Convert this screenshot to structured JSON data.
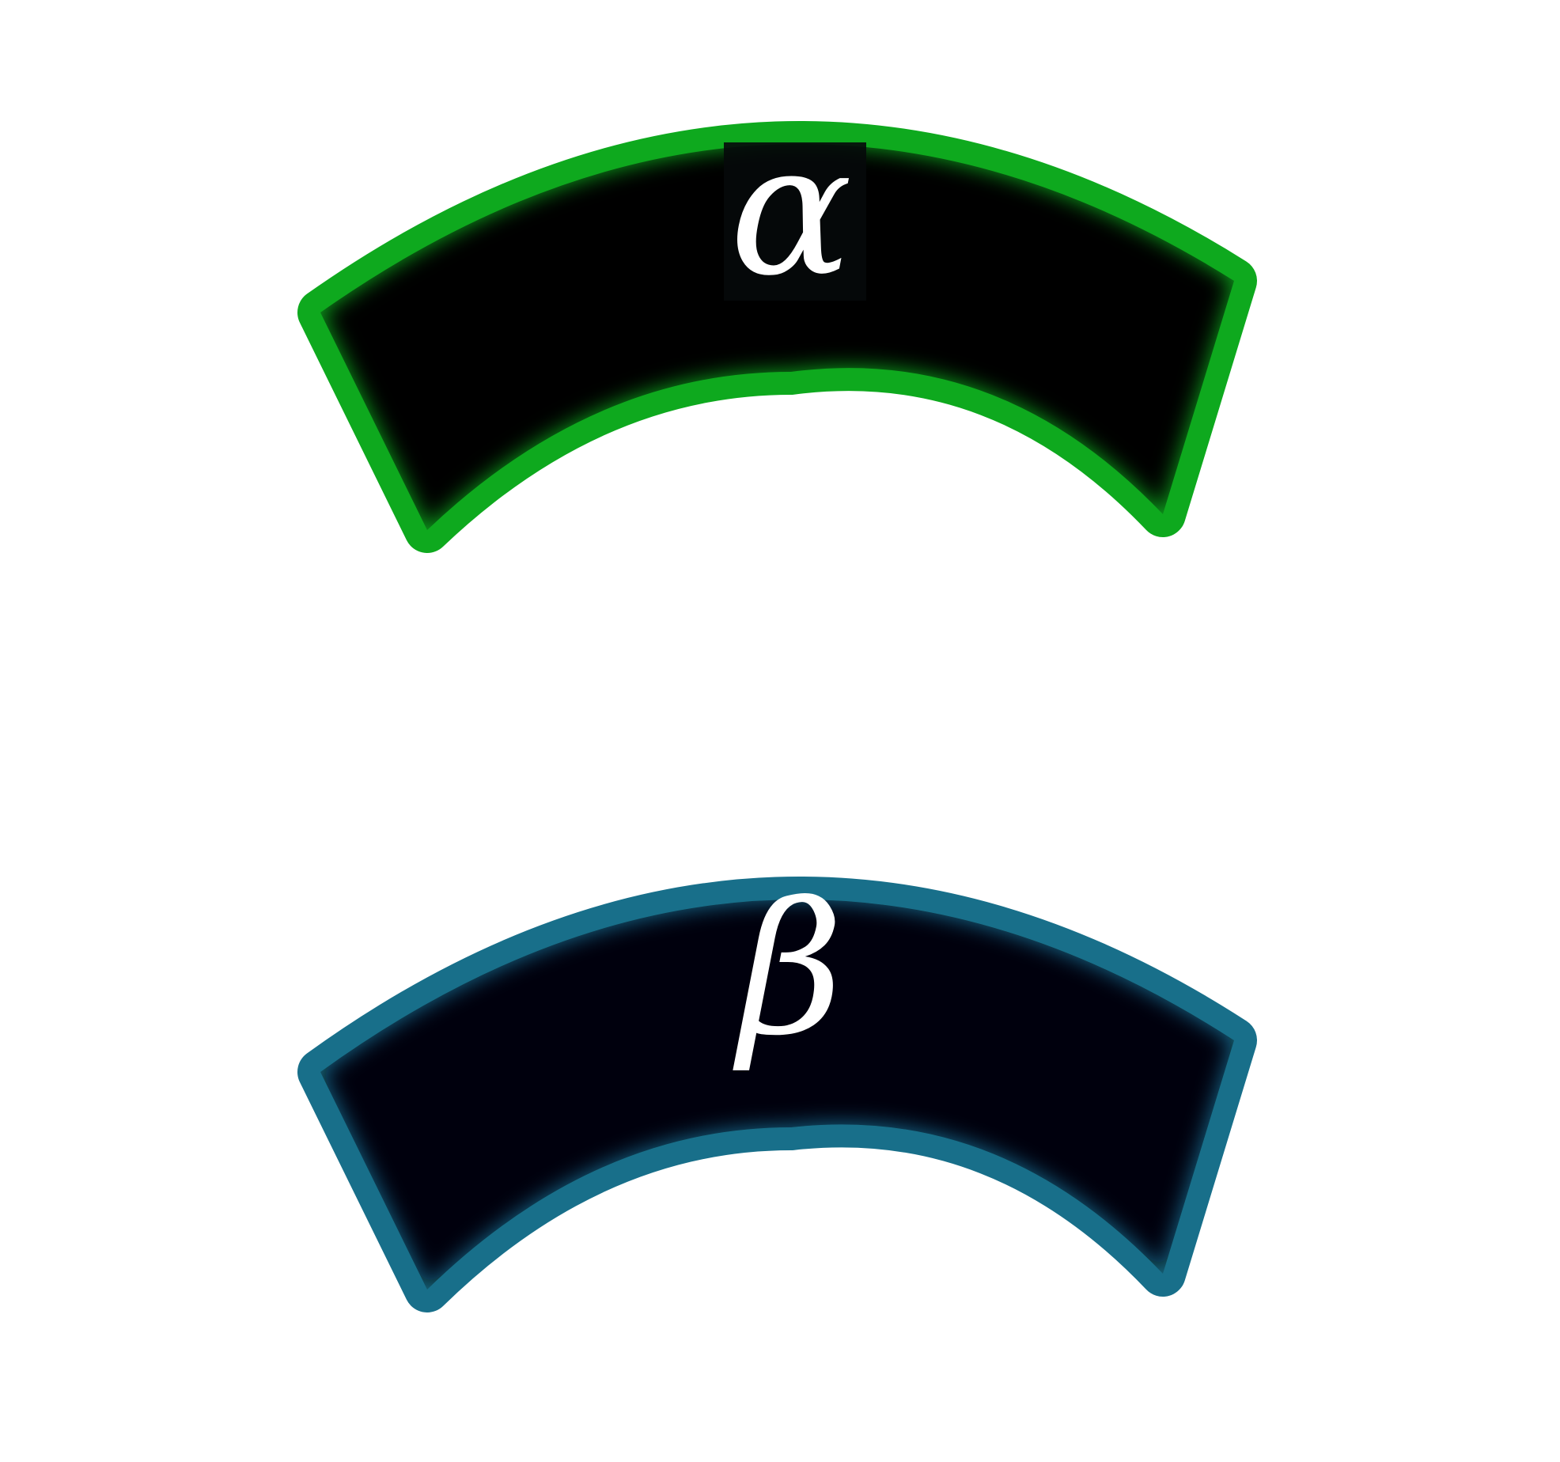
{
  "background_color": "#ffffff",
  "shapes": [
    {
      "label": "α",
      "glow_color": "#0ea91e",
      "fill_color": "#010503"
    },
    {
      "label": "β",
      "glow_color": "#186f8a",
      "fill_color": "#010507"
    }
  ]
}
